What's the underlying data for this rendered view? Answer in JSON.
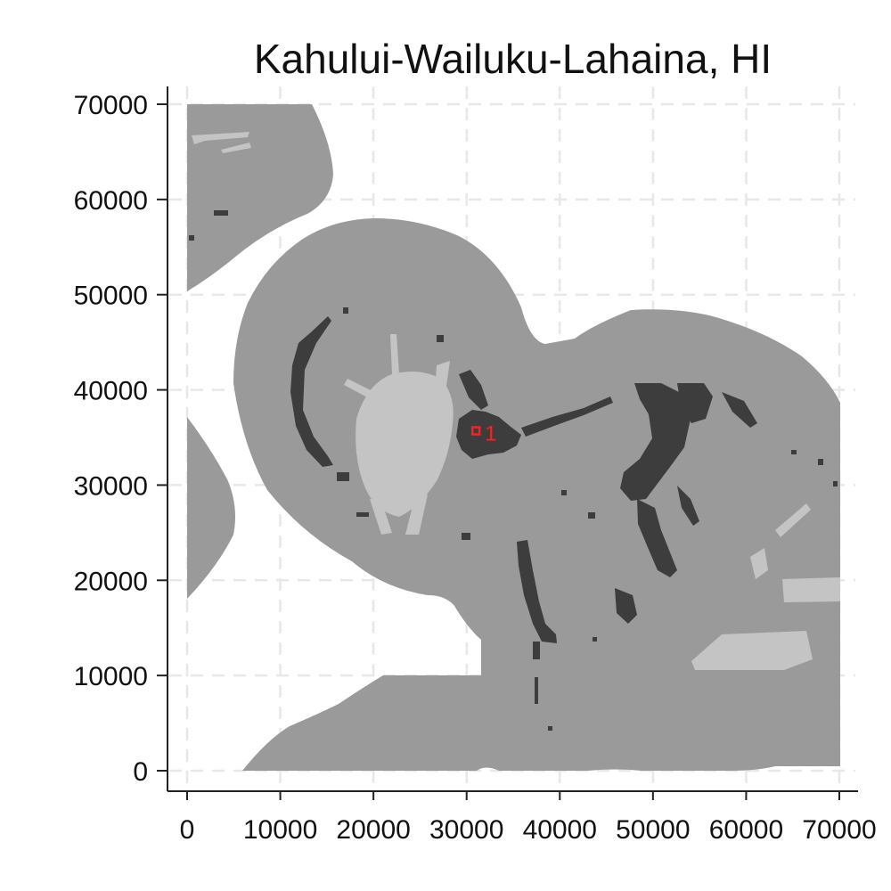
{
  "title": "Kahului-Wailuku-Lahaina, HI",
  "colors": {
    "land": "#9a9a9a",
    "highland": "#c4c4c4",
    "urban": "#3d3d3d",
    "marker": "#ff2020",
    "grid": "#e8e8e8",
    "axis": "#222222"
  },
  "chart_data": {
    "type": "map",
    "title": "Kahului-Wailuku-Lahaina, HI",
    "xlim": [
      0,
      70000
    ],
    "ylim": [
      0,
      70000
    ],
    "grid": true,
    "x_ticks": [
      0,
      10000,
      20000,
      30000,
      40000,
      50000,
      60000,
      70000
    ],
    "y_ticks": [
      0,
      10000,
      20000,
      30000,
      40000,
      50000,
      60000,
      70000
    ],
    "x_tick_labels": [
      "0",
      "10000",
      "20000",
      "30000",
      "40000",
      "50000",
      "60000",
      "70000"
    ],
    "y_tick_labels": [
      "0",
      "10000",
      "20000",
      "30000",
      "40000",
      "50000",
      "60000",
      "70000"
    ],
    "markers": [
      {
        "label": "1",
        "x": 31000,
        "y": 35700
      }
    ]
  }
}
